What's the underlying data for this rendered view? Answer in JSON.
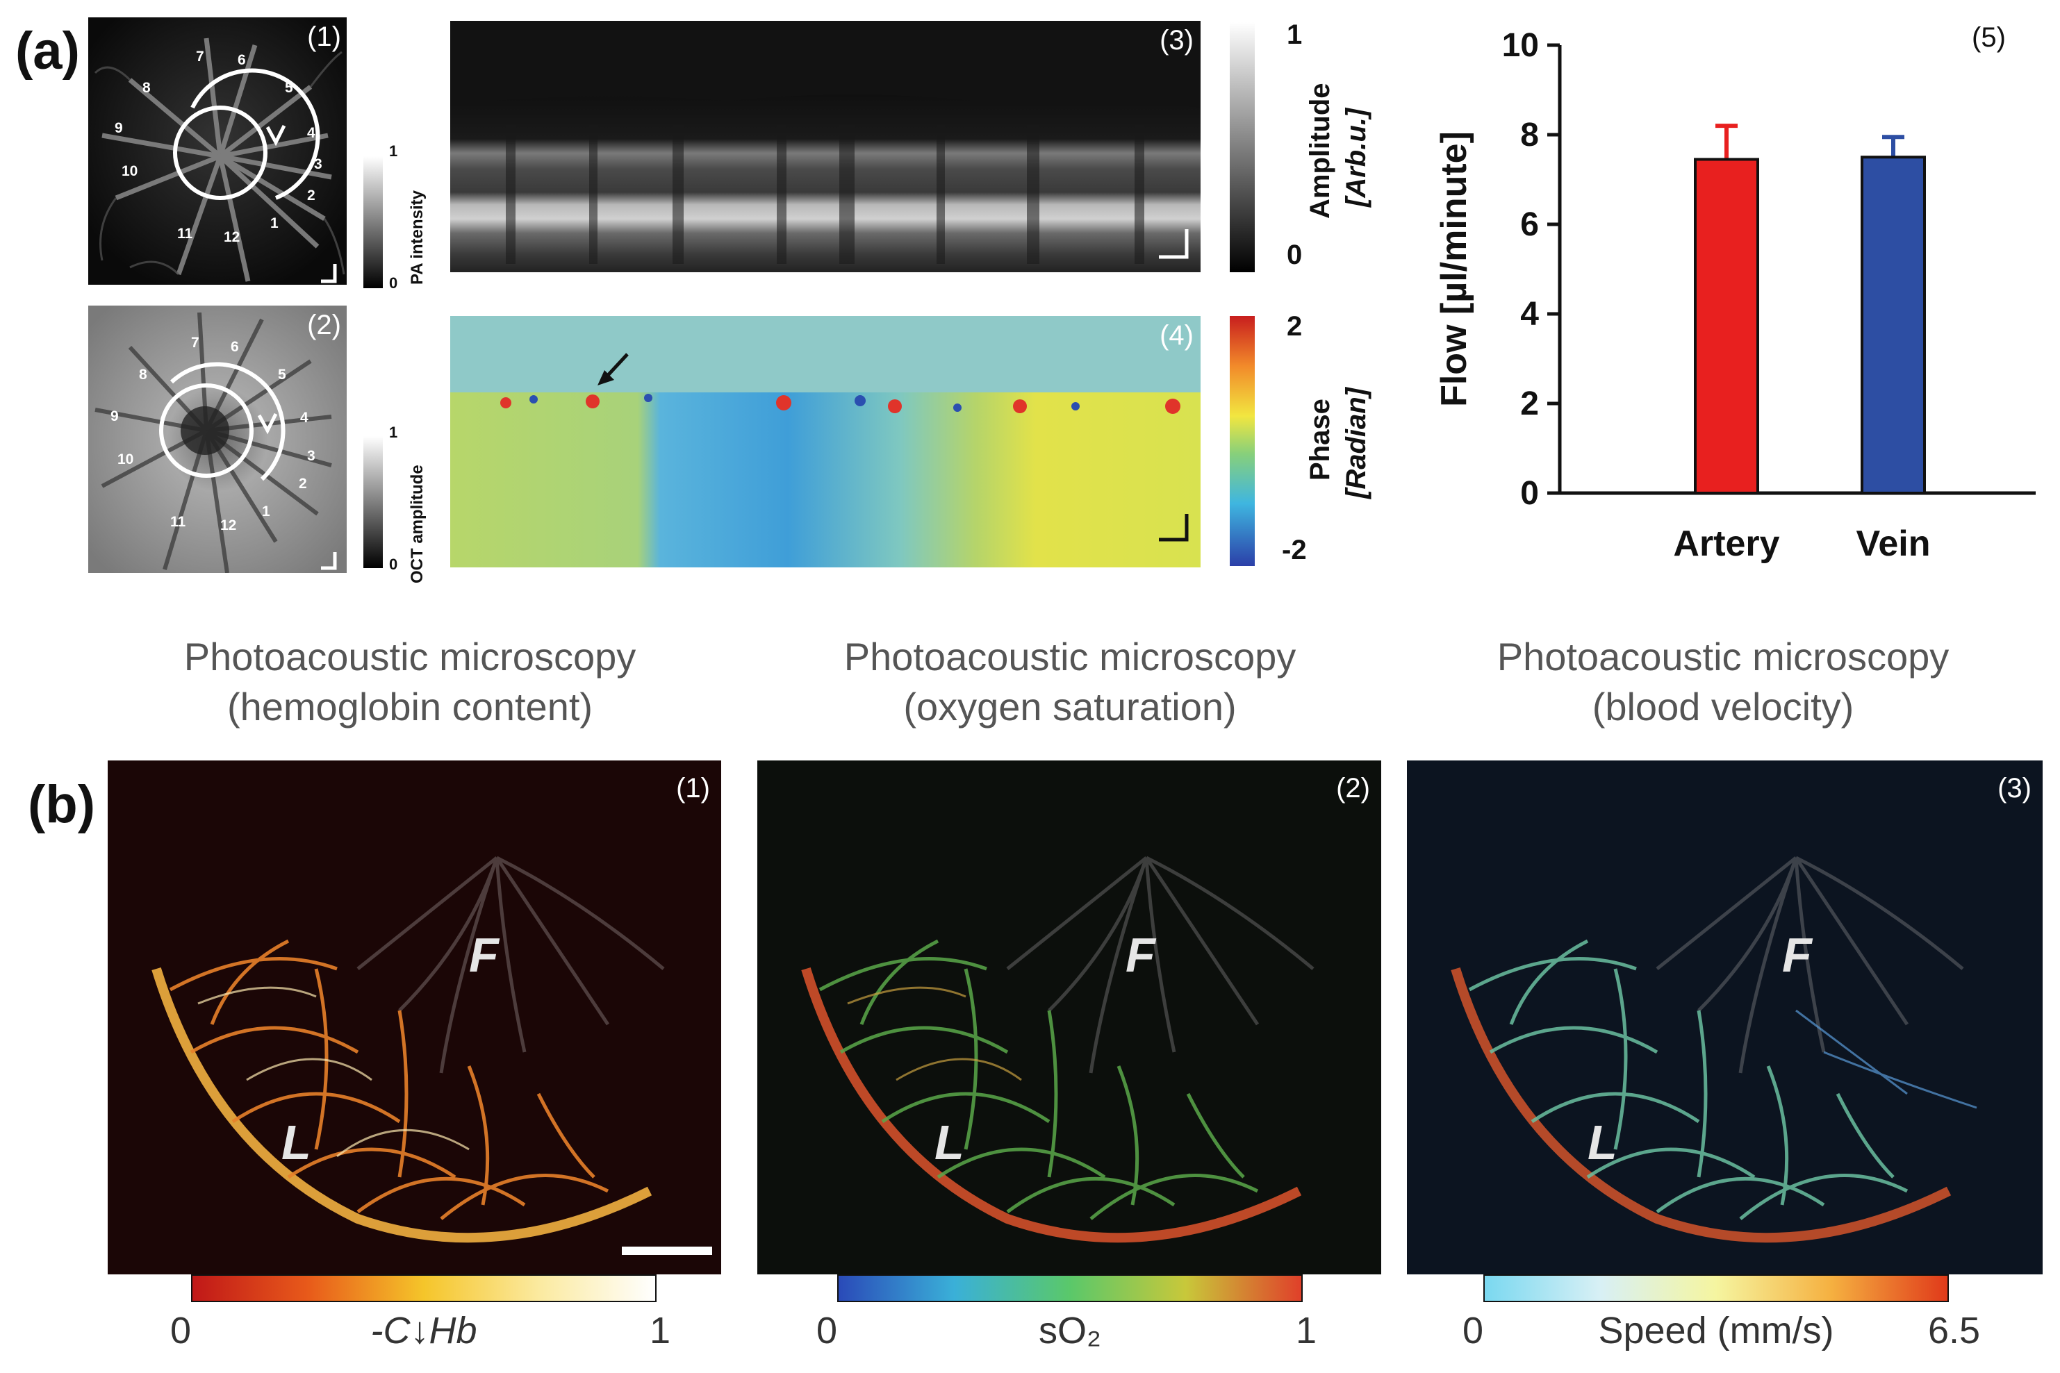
{
  "figure": {
    "panel_a_label": "(a)",
    "panel_b_label": "(b)"
  },
  "panel_a": {
    "sub1": {
      "number": "(1)",
      "vessel_labels": [
        "1",
        "2",
        "3",
        "4",
        "5",
        "6",
        "7",
        "8",
        "9",
        "10",
        "11",
        "12"
      ],
      "colorbar": {
        "title": "PA intensity",
        "max": "1",
        "min": "0"
      }
    },
    "sub2": {
      "number": "(2)",
      "vessel_labels": [
        "1",
        "2",
        "3",
        "4",
        "5",
        "6",
        "7",
        "8",
        "9",
        "10",
        "11",
        "12"
      ],
      "colorbar": {
        "title": "OCT amplitude",
        "max": "1",
        "min": "0"
      }
    },
    "sub3": {
      "number": "(3)",
      "colorbar": {
        "title": "Amplitude",
        "unit": "[Arb.u.]",
        "max": "1",
        "min": "0"
      }
    },
    "sub4": {
      "number": "(4)",
      "colorbar": {
        "title": "Phase",
        "unit": "[Radian]",
        "max": "2",
        "min": "-2"
      }
    },
    "sub5": {
      "number": "(5)"
    }
  },
  "chart_data": {
    "type": "bar",
    "categories": [
      "Artery",
      "Vein"
    ],
    "values": [
      7.45,
      7.5
    ],
    "errors": [
      0.75,
      0.45
    ],
    "colors": [
      "#e8201f",
      "#2d4ea3"
    ],
    "ylabel": "Flow [µl/minute]",
    "xlabel": "",
    "ylim": [
      0,
      10
    ],
    "yticks": [
      "0",
      "2",
      "4",
      "6",
      "8",
      "10"
    ],
    "grid": false
  },
  "panel_b": {
    "panels": [
      {
        "number": "(1)",
        "title_line1": "Photoacoustic microscopy",
        "title_line2": "(hemoglobin content)",
        "cbar_min": "0",
        "cbar_label": "-C↓Hb",
        "cbar_max": "1",
        "region_f": "F",
        "region_l": "L"
      },
      {
        "number": "(2)",
        "title_line1": "Photoacoustic microscopy",
        "title_line2": "(oxygen saturation)",
        "cbar_min": "0",
        "cbar_label": "sO₂",
        "cbar_max": "1",
        "region_f": "F",
        "region_l": "L"
      },
      {
        "number": "(3)",
        "title_line1": "Photoacoustic microscopy",
        "title_line2": "(blood velocity)",
        "cbar_min": "0",
        "cbar_label": "Speed (mm/s)",
        "cbar_max": "6.5",
        "region_f": "F",
        "region_l": "L"
      }
    ]
  }
}
